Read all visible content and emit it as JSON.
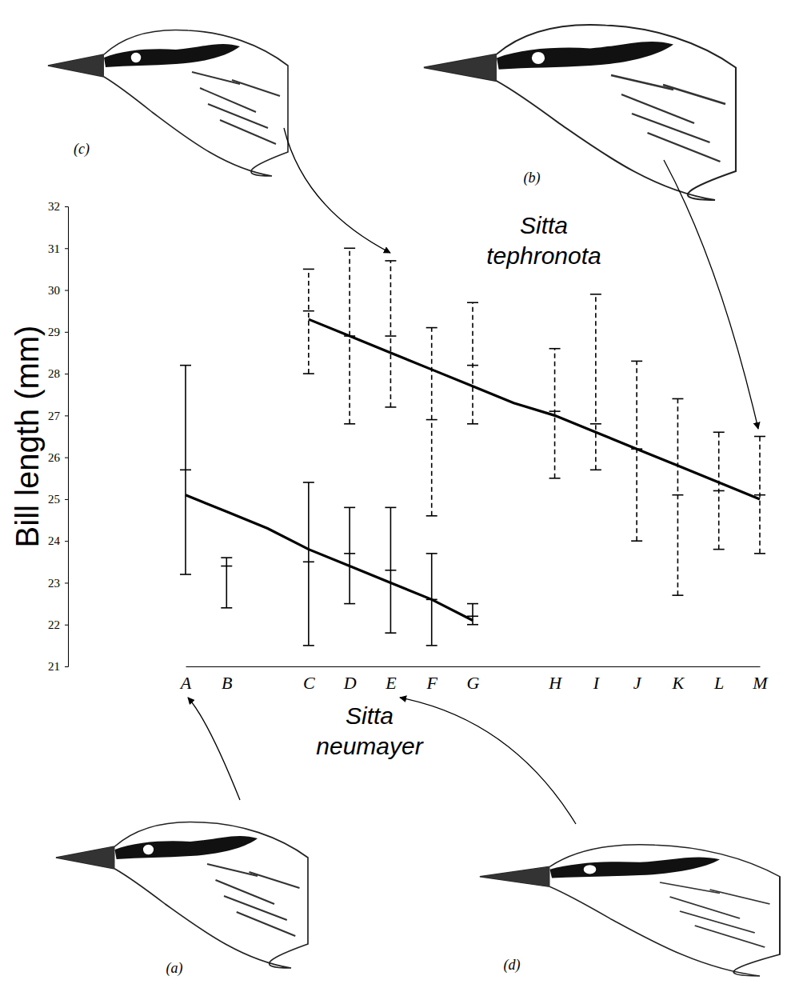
{
  "chart_data": {
    "type": "error_bar",
    "y_label": "Bill length (mm)",
    "categories": [
      "A",
      "B",
      null,
      "C",
      "D",
      "E",
      "F",
      "G",
      null,
      "H",
      "I",
      "J",
      "K",
      "L",
      "M"
    ],
    "ylim": [
      21,
      32
    ],
    "yticks": [
      21,
      22,
      23,
      24,
      25,
      26,
      27,
      28,
      29,
      30,
      31,
      32
    ],
    "series": [
      {
        "name": "Sitta neumayer",
        "color": "#000000",
        "line_style": "solid",
        "values": [
          25.7,
          23.4,
          null,
          23.5,
          23.7,
          23.3,
          22.6,
          22.2,
          null,
          null,
          null,
          null,
          null,
          null,
          null
        ],
        "low": [
          23.2,
          22.4,
          null,
          21.5,
          22.5,
          21.8,
          21.5,
          22.0,
          null,
          null,
          null,
          null,
          null,
          null,
          null
        ],
        "high": [
          28.2,
          23.6,
          null,
          25.4,
          24.8,
          24.8,
          23.7,
          22.5,
          null,
          null,
          null,
          null,
          null,
          null,
          null
        ],
        "trend": [
          25.1,
          24.7,
          24.3,
          23.8,
          23.4,
          23.0,
          22.6,
          22.1,
          null,
          null,
          null,
          null,
          null,
          null,
          null
        ]
      },
      {
        "name": "Sitta tephronota",
        "color": "#000000",
        "line_style": "dashed",
        "values": [
          null,
          null,
          null,
          29.5,
          28.9,
          28.9,
          26.9,
          28.2,
          null,
          27.1,
          26.8,
          26.2,
          25.1,
          25.2,
          25.1
        ],
        "low": [
          null,
          null,
          null,
          28.0,
          26.8,
          27.2,
          24.6,
          26.8,
          null,
          25.5,
          25.7,
          24.0,
          22.7,
          23.8,
          23.7
        ],
        "high": [
          null,
          null,
          null,
          30.5,
          31.0,
          30.7,
          29.1,
          29.7,
          null,
          28.6,
          29.9,
          28.3,
          27.4,
          26.6,
          26.5
        ],
        "trend": [
          null,
          null,
          null,
          29.3,
          28.9,
          28.5,
          28.1,
          27.7,
          27.3,
          27.0,
          26.6,
          26.2,
          25.8,
          25.4,
          25.0
        ]
      }
    ],
    "annotations": [
      "(c)",
      "(b)",
      "(a)",
      "(d)"
    ]
  }
}
